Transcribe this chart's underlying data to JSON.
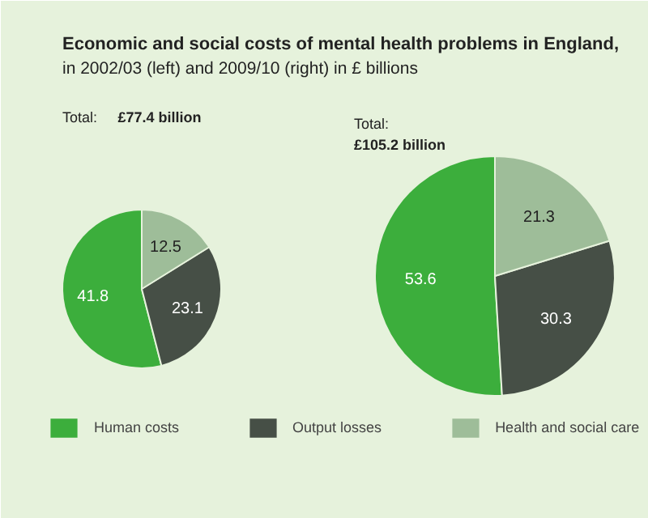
{
  "chart_data": [
    {
      "type": "pie",
      "title": "Economic and social costs of mental health problems in England,",
      "subtitle": "in 2002/03 (left) and 2009/10 (right) in £ billions",
      "annotations": [
        "Total: £77.4 billion"
      ],
      "categories": [
        "Human costs",
        "Output losses",
        "Health and social care"
      ],
      "values": [
        41.8,
        23.1,
        12.5
      ],
      "colors": [
        "#3cae3c",
        "#464f46",
        "#9ebd99"
      ],
      "data_labels": true,
      "legend": "bottom"
    },
    {
      "type": "pie",
      "annotations": [
        "Total: £105.2 billion"
      ],
      "values": [
        53.6,
        30.3,
        21.3
      ],
      "colors": [
        "#3cae3c",
        "#464f46",
        "#9ebd99"
      ],
      "data_labels": true
    }
  ]
}
